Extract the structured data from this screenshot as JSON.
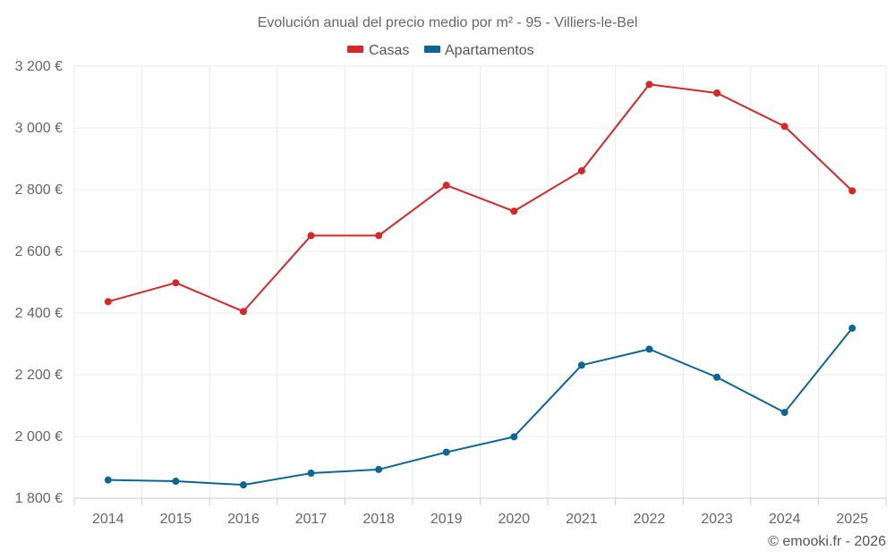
{
  "chart_data": {
    "type": "line",
    "title": "Evolución anual del precio medio por m² - 95 - Villiers-le-Bel",
    "categories": [
      "2014",
      "2015",
      "2016",
      "2017",
      "2018",
      "2019",
      "2020",
      "2021",
      "2022",
      "2023",
      "2024",
      "2025"
    ],
    "series": [
      {
        "name": "Casas",
        "color": "#d62728",
        "values": [
          2437,
          2498,
          2405,
          2651,
          2651,
          2814,
          2730,
          2861,
          3141,
          3113,
          3005,
          2796
        ]
      },
      {
        "name": "Apartamentos",
        "color": "#0b6696",
        "values": [
          1859,
          1855,
          1843,
          1881,
          1893,
          1949,
          1999,
          2231,
          2283,
          2192,
          2078,
          2351
        ]
      }
    ],
    "ylim": [
      1800,
      3200
    ],
    "yticks": [
      1800,
      2000,
      2200,
      2400,
      2600,
      2800,
      3000,
      3200
    ],
    "ytick_labels": [
      "1 800 €",
      "2 000 €",
      "2 200 €",
      "2 400 €",
      "2 600 €",
      "2 800 €",
      "3 000 €",
      "3 200 €"
    ],
    "grid": true,
    "legend": "top-center",
    "credit": "© emooki.fr - 2026"
  }
}
